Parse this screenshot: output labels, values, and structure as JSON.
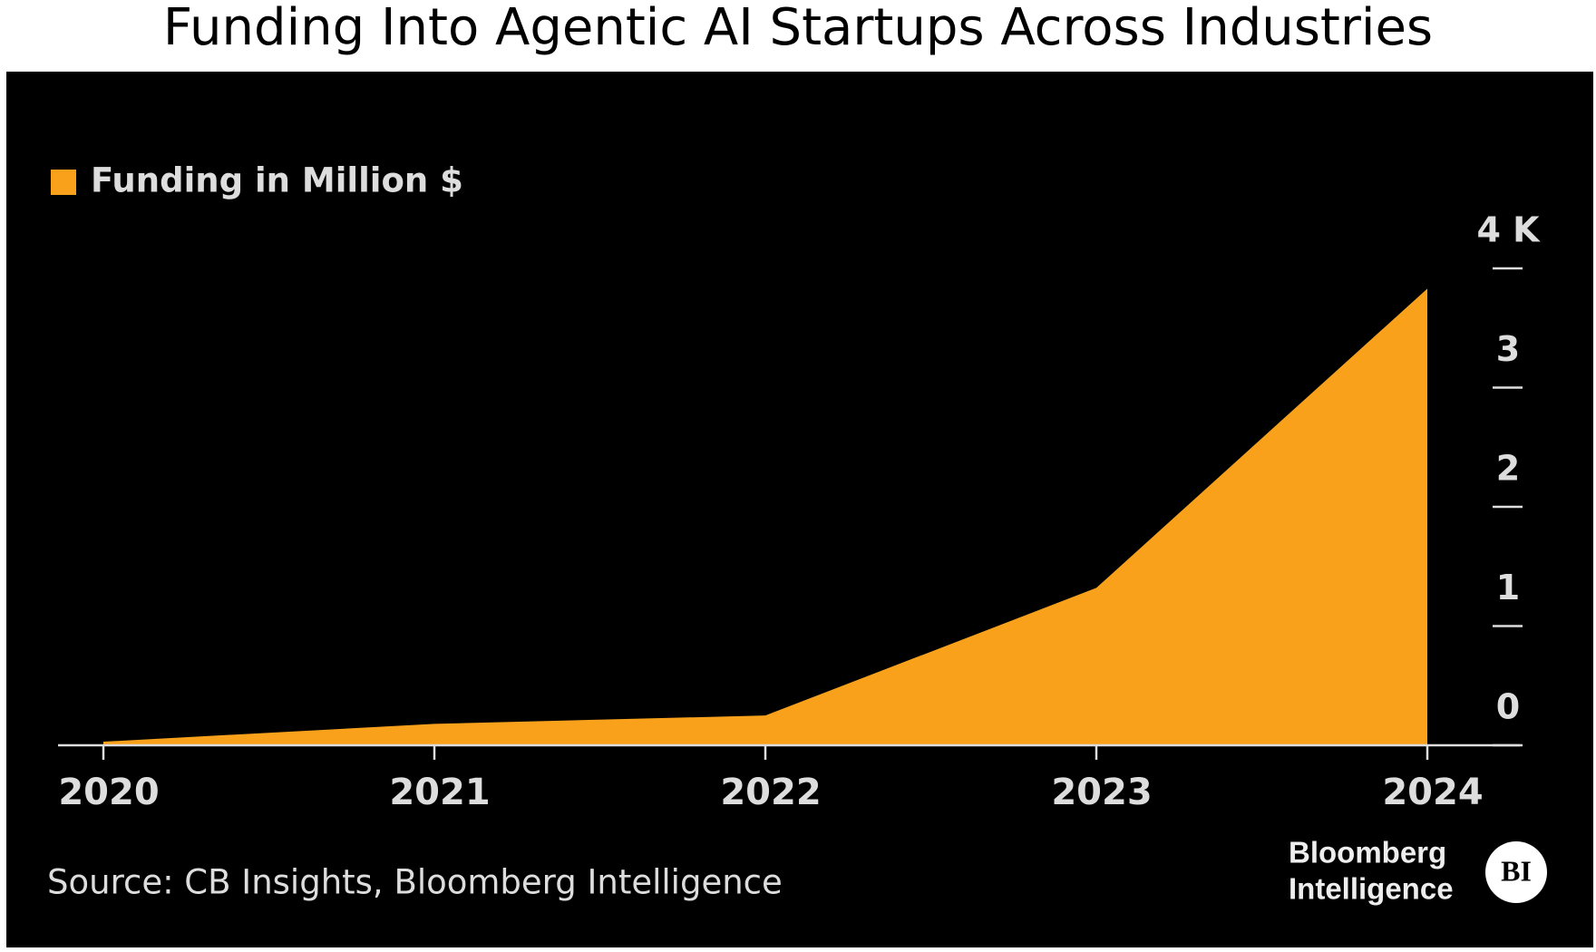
{
  "chart_data": {
    "type": "area",
    "title": "Funding Into Agentic AI Startups Across Industries",
    "categories": [
      "2020",
      "2021",
      "2022",
      "2023",
      "2024"
    ],
    "series": [
      {
        "name": "Funding in Million $",
        "color": "#f9a11b",
        "values": [
          0.03,
          0.18,
          0.25,
          1.32,
          3.83
        ]
      }
    ],
    "ylim": [
      0,
      4
    ],
    "yticks": [
      0,
      1,
      2,
      3,
      {
        "value": 4,
        "label": "4 K"
      }
    ],
    "y_axis_side": "right",
    "grid": false,
    "legend": "top-left",
    "source": "Source: CB Insights, Bloomberg Intelligence",
    "brand": {
      "line1": "Bloomberg",
      "line2": "Intelligence",
      "badge": "BI"
    }
  }
}
